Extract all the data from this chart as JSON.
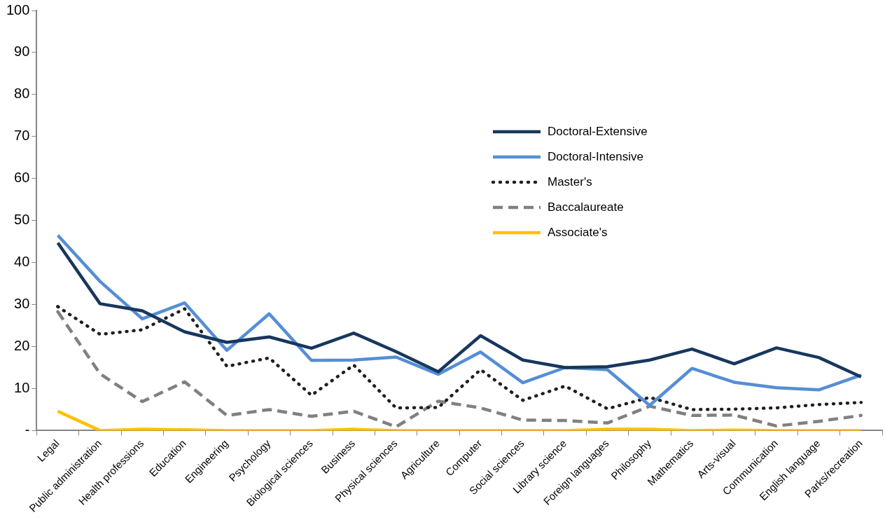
{
  "chart_data": {
    "type": "line",
    "categories": [
      "Legal",
      "Public administration",
      "Health professions",
      "Education",
      "Engineering",
      "Psychology",
      "Biological sciences",
      "Business",
      "Physical sciences",
      "Agriculture",
      "Computer",
      "Social sciences",
      "Library science",
      "Foreign languages",
      "Philosophy",
      "Mathematics",
      "Arts-visual",
      "Communication",
      "English language",
      "Parks/recreation"
    ],
    "series": [
      {
        "name": "Doctoral-Extensive",
        "color": "#17375e",
        "line_style": "solid",
        "values": [
          44.7,
          30.2,
          28.5,
          23.5,
          21,
          22.3,
          19.6,
          23.2,
          18.8,
          14,
          22.6,
          16.8,
          15,
          15.2,
          16.8,
          19.4,
          15.9,
          19.7,
          17.4,
          12.8
        ]
      },
      {
        "name": "Doctoral-Intensive",
        "color": "#558ed5",
        "line_style": "solid",
        "values": [
          46.5,
          35.5,
          26.6,
          30.4,
          19.1,
          27.8,
          16.7,
          16.8,
          17.5,
          13.4,
          18.7,
          11.4,
          15,
          14.5,
          6,
          14.8,
          11.5,
          10.2,
          9.7,
          13.2
        ]
      },
      {
        "name": "Master's",
        "color": "#1f1f1f",
        "line_style": "dotted",
        "values": [
          29.5,
          22.9,
          24,
          29,
          15.3,
          17.3,
          8.4,
          15.6,
          5.4,
          5.5,
          14.5,
          7.2,
          10.6,
          5.2,
          7.9,
          5,
          5.1,
          5.4,
          6.2,
          6.7
        ]
      },
      {
        "name": "Baccalaureate",
        "color": "#808080",
        "line_style": "dashed",
        "values": [
          28.3,
          13.5,
          6.9,
          11.6,
          3.6,
          5,
          3.4,
          4.6,
          0.9,
          7,
          5.4,
          2.5,
          2.4,
          1.8,
          5.8,
          3.6,
          3.7,
          1.1,
          2.2,
          3.6
        ]
      },
      {
        "name": "Associate's",
        "color": "#ffc000",
        "line_style": "solid",
        "values": [
          4.6,
          0,
          0.3,
          0.2,
          0,
          0,
          0,
          0.3,
          0,
          0,
          0,
          0,
          0,
          0.3,
          0.3,
          0,
          0.1,
          0,
          0,
          0
        ]
      }
    ],
    "ylim": [
      0,
      100
    ],
    "yticks": [
      {
        "value": 0,
        "label": "-"
      },
      10,
      20,
      30,
      40,
      50,
      60,
      70,
      80,
      90,
      100
    ],
    "grid": false,
    "legend": "right",
    "marker": "none"
  }
}
